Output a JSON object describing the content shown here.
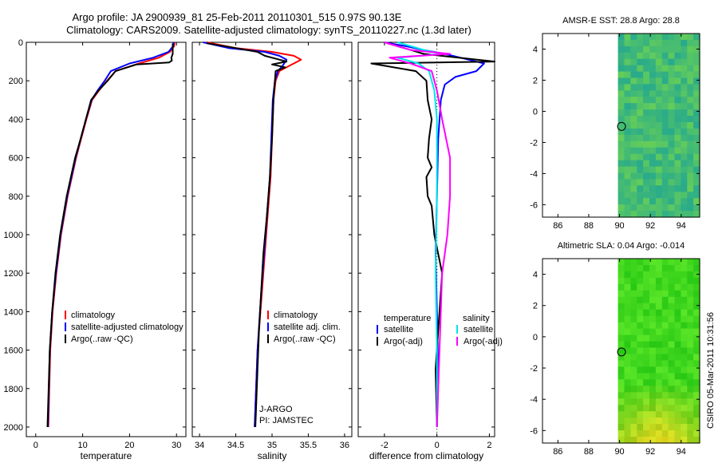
{
  "header": {
    "line1": "Argo profile: JA 2900939_81 25-Feb-2011 20110301_515 0.97S 90.13E",
    "line2": "Climatology: CARS2009. Satellite-adjusted climatology: synTS_20110227.nc (1.3d later)"
  },
  "footer_label": "CSIRO 05-Mar-2011 10:31:56",
  "colors": {
    "clim": "#ff0000",
    "sat": "#0000ff",
    "argo": "#000000",
    "sat_sal": "#00e5ee",
    "argo_sal": "#ff00ff"
  },
  "chart_data": [
    {
      "type": "line",
      "name": "temperature-panel",
      "xlabel": "temperature",
      "ylabel": "",
      "xlim": [
        -2,
        32
      ],
      "ylim": [
        2050,
        0
      ],
      "xticks": [
        "0",
        "10",
        "20",
        "30"
      ],
      "yticks": [
        "0",
        "200",
        "400",
        "600",
        "800",
        "1000",
        "1200",
        "1400",
        "1600",
        "1800",
        "2000"
      ],
      "series": [
        {
          "name": "climatology",
          "color": "#ff0000",
          "x": [
            29.6,
            29.5,
            28.6,
            26.2,
            22,
            17,
            15.2,
            13.5,
            12,
            10.8,
            9.7,
            8.6,
            6.8,
            5.4,
            4.4,
            3.6,
            3.1,
            2.7
          ],
          "y": [
            0,
            20,
            50,
            80,
            110,
            150,
            200,
            250,
            300,
            400,
            500,
            600,
            800,
            1000,
            1200,
            1400,
            1600,
            2000
          ]
        },
        {
          "name": "satellite-adjusted climatology",
          "color": "#0000ff",
          "x": [
            29.4,
            29.3,
            28.3,
            25,
            20,
            16,
            14.7,
            13.2,
            11.9,
            10.7,
            9.6,
            8.5,
            6.7,
            5.3,
            4.3,
            3.5,
            3,
            2.6
          ],
          "y": [
            0,
            20,
            50,
            80,
            110,
            150,
            200,
            250,
            300,
            400,
            500,
            600,
            800,
            1000,
            1200,
            1400,
            1600,
            2000
          ]
        },
        {
          "name": "Argo(..raw -QC)",
          "color": "#000000",
          "x": [
            29.2,
            29.2,
            28.9,
            29,
            28.4,
            21.5,
            17,
            15.3,
            13.4,
            11.8,
            10.7,
            9.6,
            8.4,
            6.6,
            5.2,
            4.2,
            3.5,
            3,
            2.5
          ],
          "y": [
            5,
            60,
            80,
            95,
            105,
            115,
            150,
            200,
            250,
            300,
            400,
            500,
            600,
            800,
            1000,
            1200,
            1400,
            1600,
            2000
          ]
        }
      ],
      "legend": [
        "climatology",
        "satellite-adjusted climatology",
        "Argo(..raw -QC)"
      ]
    },
    {
      "type": "line",
      "name": "salinity-panel",
      "xlabel": "salinity",
      "ylabel": "",
      "xlim": [
        33.9,
        36.1
      ],
      "ylim": [
        2050,
        0
      ],
      "xticks": [
        "34",
        "34.5",
        "35",
        "35.5",
        "36"
      ],
      "yticks": [],
      "series": [
        {
          "name": "climatology",
          "color": "#ff0000",
          "x": [
            34.1,
            34.5,
            35,
            35.3,
            35.4,
            35.25,
            35.1,
            35.05,
            35.02,
            35,
            34.98,
            34.94,
            34.9,
            34.86,
            34.8,
            34.76
          ],
          "y": [
            0,
            30,
            50,
            70,
            90,
            120,
            150,
            200,
            300,
            500,
            700,
            900,
            1100,
            1300,
            1600,
            2000
          ]
        },
        {
          "name": "satellite adj. clim.",
          "color": "#0000ff",
          "x": [
            34.05,
            34.4,
            34.9,
            35.1,
            35.2,
            35.15,
            35.08,
            35.04,
            35.01,
            34.99,
            34.97,
            34.93,
            34.89,
            34.85,
            34.8,
            34.76
          ],
          "y": [
            0,
            30,
            50,
            70,
            90,
            120,
            150,
            200,
            300,
            500,
            700,
            900,
            1100,
            1300,
            1600,
            2000
          ]
        },
        {
          "name": "Argo(..raw -QC)",
          "color": "#000000",
          "x": [
            34.1,
            34.5,
            34.8,
            34.9,
            35.1,
            35.2,
            35,
            35.18,
            35.05,
            35.02,
            35,
            34.97,
            34.93,
            34.88,
            34.82,
            34.77
          ],
          "y": [
            5,
            30,
            50,
            70,
            90,
            100,
            115,
            130,
            150,
            300,
            500,
            700,
            900,
            1100,
            1500,
            2000
          ]
        }
      ],
      "legend": [
        "climatology",
        "satellite adj. clim.",
        "Argo(..raw -QC)"
      ],
      "annotations": [
        "J-ARGO",
        "PI: JAMSTEC"
      ]
    },
    {
      "type": "line",
      "name": "difference-panel",
      "xlabel": "difference from climatology",
      "ylabel": "",
      "xlim": [
        -3,
        2.2
      ],
      "ylim": [
        2050,
        0
      ],
      "xticks": [
        "-2",
        "0",
        "2"
      ],
      "yticks": [],
      "series": [
        {
          "name": "temperature satellite",
          "color": "#0000ff",
          "x": [
            -2,
            -1.2,
            -0.5,
            0.3,
            1.2,
            1.8,
            1.5,
            0.7,
            0.3,
            0.15,
            0.05,
            0,
            -0.05,
            0,
            0.05,
            0
          ],
          "y": [
            0,
            20,
            40,
            60,
            90,
            110,
            150,
            180,
            220,
            300,
            500,
            800,
            1100,
            1400,
            1700,
            2000
          ]
        },
        {
          "name": "temperature Argo(-adj)",
          "color": "#000000",
          "x": [
            -2,
            -1,
            -0.5,
            2.2,
            -2.5,
            -0.8,
            -0.4,
            -0.35,
            -0.2,
            -0.3,
            -0.35,
            -0.2,
            -0.4,
            -0.35,
            -0.2,
            -0.1,
            0.2,
            0.1,
            -0.05,
            0
          ],
          "y": [
            0,
            40,
            60,
            100,
            110,
            150,
            200,
            300,
            400,
            500,
            600,
            650,
            700,
            800,
            850,
            1000,
            1200,
            1400,
            1700,
            2000
          ]
        },
        {
          "name": "salinity satellite",
          "color": "#00e5ee",
          "x": [
            -1.5,
            -0.5,
            0.2,
            -1.5,
            -0.7,
            -0.3,
            -0.1,
            0,
            0,
            -0.05,
            0,
            0
          ],
          "y": [
            0,
            40,
            60,
            80,
            110,
            150,
            250,
            400,
            800,
            1200,
            1600,
            2000
          ]
        },
        {
          "name": "salinity Argo(-adj)",
          "color": "#ff00ff",
          "x": [
            -2,
            -1,
            0.5,
            -1.8,
            -1,
            -0.2,
            0,
            0.2,
            0.5,
            0.5,
            0.4,
            0.2,
            0.1,
            0
          ],
          "y": [
            0,
            40,
            60,
            80,
            110,
            150,
            250,
            400,
            600,
            800,
            1000,
            1200,
            1600,
            2000
          ]
        }
      ],
      "legend_headers": [
        "temperature",
        "salinity"
      ],
      "legend": [
        "satellite",
        "Argo(-adj)",
        "satellite",
        "Argo(-adj)"
      ]
    },
    {
      "type": "heatmap",
      "name": "sst-map",
      "title": "AMSR-E SST: 28.8 Argo: 28.8",
      "xlim": [
        85,
        95.2
      ],
      "ylim": [
        -6.8,
        5
      ],
      "xticks": [
        "86",
        "88",
        "90",
        "92",
        "94"
      ],
      "yticks": [
        "4",
        "2",
        "0",
        "-2",
        "-4",
        "-6"
      ],
      "data_xmin": 89.9,
      "marker": {
        "lon": 90.13,
        "lat": -0.97
      }
    },
    {
      "type": "heatmap",
      "name": "sla-map",
      "title": "Altimetric SLA: 0.04 Argo: -0.014",
      "xlim": [
        85,
        95.2
      ],
      "ylim": [
        -6.8,
        5
      ],
      "xticks": [
        "86",
        "88",
        "90",
        "92",
        "94"
      ],
      "yticks": [
        "4",
        "2",
        "0",
        "-2",
        "-4",
        "-6"
      ],
      "data_xmin": 89.9,
      "marker": {
        "lon": 90.13,
        "lat": -0.97
      }
    }
  ]
}
